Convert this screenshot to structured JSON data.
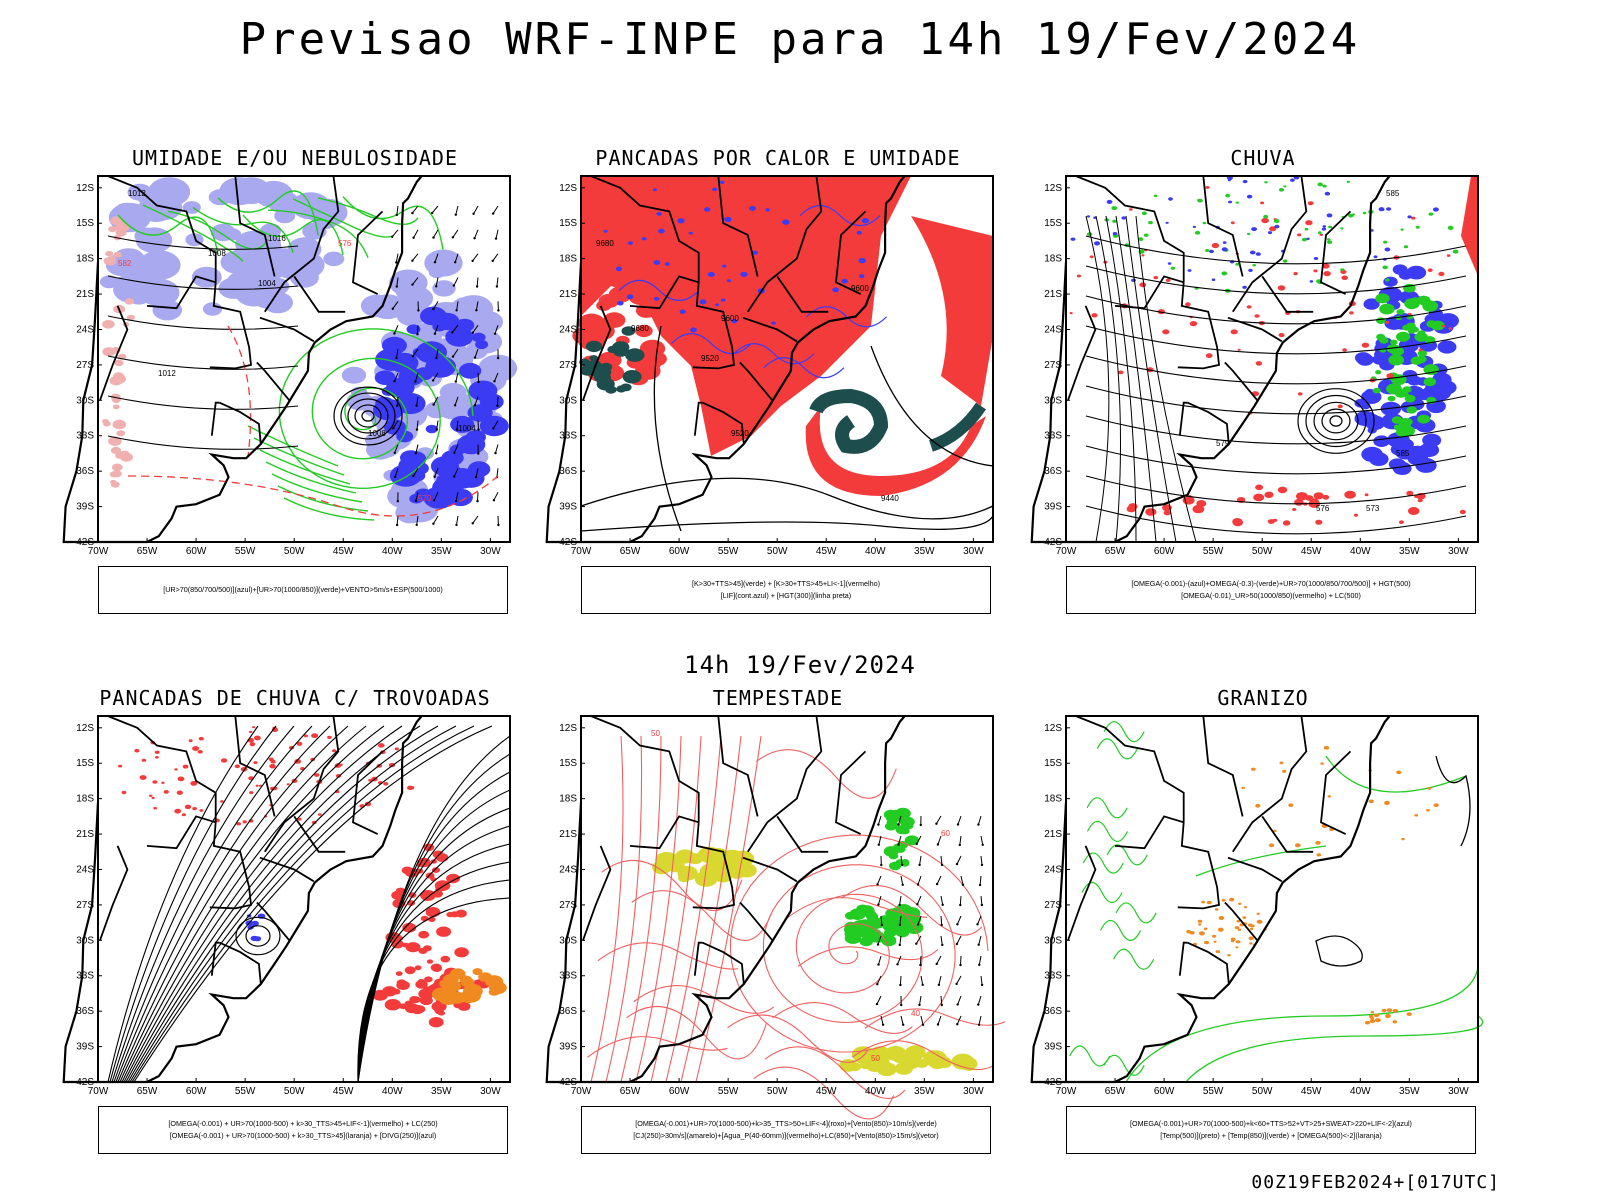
{
  "main_title": "Previsao WRF-INPE  para 14h 19/Fev/2024",
  "mid_title": "14h 19/Fev/2024",
  "footer": "00Z19FEB2024+[017UTC]",
  "lat_labels": [
    "12S",
    "15S",
    "18S",
    "21S",
    "24S",
    "27S",
    "30S",
    "33S",
    "36S",
    "39S",
    "42S"
  ],
  "lon_labels": [
    "70W",
    "65W",
    "60W",
    "55W",
    "50W",
    "45W",
    "40W",
    "35W",
    "30W"
  ],
  "colors": {
    "red": "#f43b3b",
    "blue": "#3b3bf4",
    "green": "#22cc22",
    "lilac": "#a9a9f0",
    "teal": "#1e4d4d",
    "yellow": "#d8d830",
    "orange": "#f08a20"
  },
  "panels": [
    {
      "id": "p1",
      "title": "UMIDADE E/OU NEBULOSIDADE",
      "legend": [
        "[UR>70(850/700/500)](azul)+[UR>70(1000/850)](verde)+VENTO>5m/s+ESP(500/1000)"
      ],
      "labels": [
        "1012",
        "1008",
        "1004",
        "1012",
        "570",
        "576",
        "582",
        "1016",
        "1008",
        "1004"
      ]
    },
    {
      "id": "p2",
      "title": "PANCADAS POR CALOR E UMIDADE",
      "legend": [
        "[K>30+TTS>45](verde) + [K>30+TTS>45+LI<-1](vermelho)",
        "[LIF](cont.azul) + [HGT(300)](linha preta)"
      ],
      "labels": [
        "9680",
        "9600",
        "9520",
        "9440",
        "9600",
        "9520",
        "9680"
      ]
    },
    {
      "id": "p3",
      "title": "CHUVA",
      "legend": [
        "[OMEGA(-0.001)-(azul)+OMEGA(-0.3)-(verde)+UR>70(1000/850/700/500)] + HGT(500)",
        "[OMEGA(-0.01)_UR>50(1000/850)(vermelho) + LC(500)"
      ],
      "labels": [
        "585",
        "579",
        "573",
        "576",
        "585"
      ]
    },
    {
      "id": "p4",
      "title": "PANCADAS DE CHUVA C/ TROVOADAS",
      "legend": [
        "[OMEGA(-0.001) + UR>70(1000-500) + k>30_TTS>45+LIF<-1](vermelho) + LC(250)",
        "[OMEGA(-0.001) + UR>70(1000-500) + k>30_TTS>45](laranja) + [DIVG(250)](azul)"
      ],
      "labels": []
    },
    {
      "id": "p5",
      "title": "TEMPESTADE",
      "legend": [
        "[OMEGA(-0.001)+UR>70(1000-500)+k>35_TTS>50+LIF<-4](roxo)+[Vento(850)>10m/s](verde)",
        "[CJ(250)>30m/s](amarelo)+[Agua_P(40-60mm)](vermelho)+LC(850)+[Vento(850)>15m/s](vetor)"
      ],
      "labels": [
        "50",
        "60",
        "40",
        "50"
      ]
    },
    {
      "id": "p6",
      "title": "GRANIZO",
      "legend": [
        "[OMEGA(-0.001)+UR>70(1000-500)+k<60+TTS>52+VT>25+SWEAT>220+LIF<-2](azul)",
        "[Temp(500)](preto) + [Temp(850)](verde) + [OMEGA(500)<-2](laranja)"
      ],
      "labels": []
    }
  ]
}
